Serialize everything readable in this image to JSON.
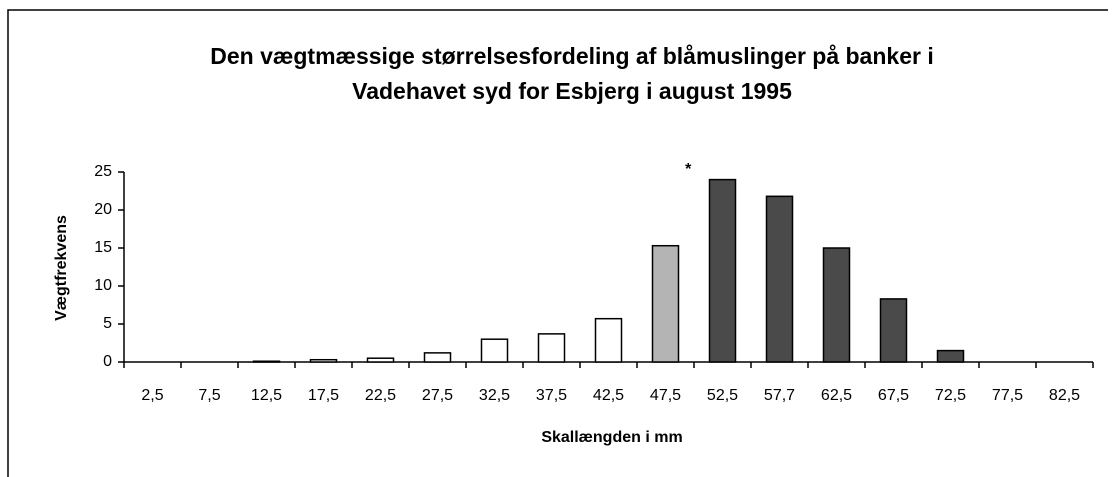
{
  "chart_data": {
    "type": "bar",
    "title": [
      "Den vægtmæssige størrelsesfordeling af blåmuslinger på banker i",
      "Vadehavet syd for Esbjerg i august 1995"
    ],
    "y_label": "Vægtfrekvens",
    "x_label": "Skallængden i mm",
    "annotation": "*",
    "categories": [
      "2,5",
      "7,5",
      "12,5",
      "17,5",
      "22,5",
      "27,5",
      "32,5",
      "37,5",
      "42,5",
      "47,5",
      "52,5",
      "57,7",
      "62,5",
      "67,5",
      "72,5",
      "77,5",
      "82,5"
    ],
    "values": [
      0,
      0,
      0.1,
      0.3,
      0.5,
      1.2,
      3,
      3.7,
      5.7,
      15.3,
      24,
      21.8,
      15,
      8.3,
      1.5,
      0,
      0
    ],
    "colors": [
      "#ffffff",
      "#ffffff",
      "#ffffff",
      "#ffffff",
      "#ffffff",
      "#ffffff",
      "#ffffff",
      "#ffffff",
      "#ffffff",
      "#b4b4b4",
      "#4a4a4a",
      "#4a4a4a",
      "#4a4a4a",
      "#4a4a4a",
      "#4a4a4a",
      "#4a4a4a",
      "#4a4a4a"
    ],
    "ylim": [
      0,
      25
    ],
    "yticks": [
      0,
      5,
      10,
      15,
      20,
      25
    ],
    "grid": false
  }
}
